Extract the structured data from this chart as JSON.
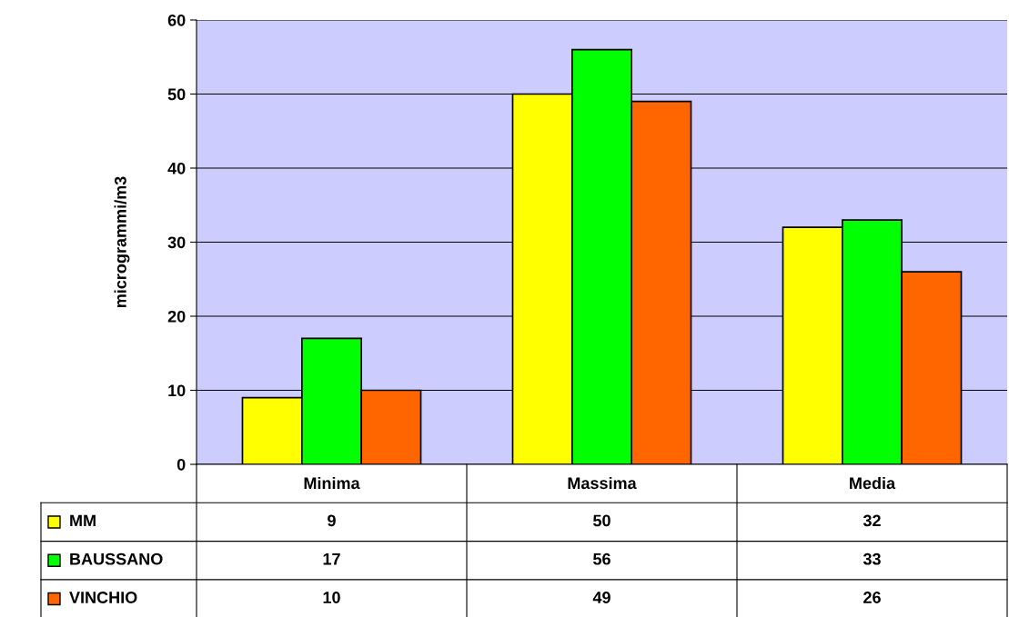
{
  "chart_data": {
    "type": "bar",
    "ylabel": "microgrammi/m3",
    "categories": [
      "Minima",
      "Massima",
      "Media"
    ],
    "series": [
      {
        "name": "MM",
        "color": "#ffff00",
        "values": [
          9,
          50,
          32
        ]
      },
      {
        "name": "BAUSSANO",
        "color": "#00ff00",
        "values": [
          17,
          56,
          33
        ]
      },
      {
        "name": "VINCHIO",
        "color": "#ff6600",
        "values": [
          10,
          49,
          26
        ]
      }
    ],
    "ylim": [
      0,
      60
    ],
    "yticks": [
      0,
      10,
      20,
      30,
      40,
      50,
      60
    ],
    "grid": "y",
    "legend": "bottom",
    "data_labels": true
  }
}
